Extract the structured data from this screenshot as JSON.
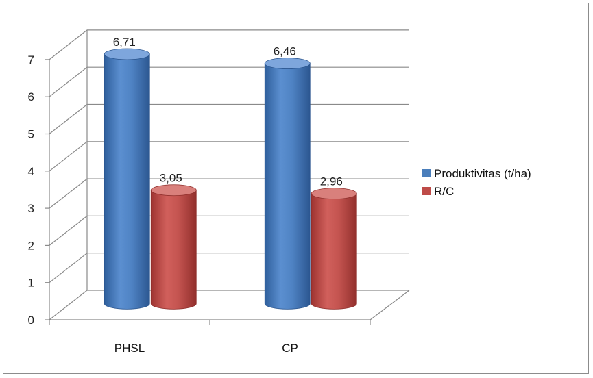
{
  "chart_data": {
    "type": "bar",
    "style": "3d-cylinder",
    "categories": [
      "PHSL",
      "CP"
    ],
    "series": [
      {
        "name": "Produktivitas (t/ha)",
        "values": [
          6.71,
          6.46
        ],
        "labels": [
          "6,71",
          "6,46"
        ],
        "color": "#4a7ebb"
      },
      {
        "name": "R/C",
        "values": [
          3.05,
          2.96
        ],
        "labels": [
          "3,05",
          "2,96"
        ],
        "color": "#be4b48"
      }
    ],
    "yticks": [
      "0",
      "1",
      "2",
      "3",
      "4",
      "5",
      "6",
      "7"
    ],
    "ylim": [
      0,
      7
    ],
    "grid": true,
    "legend_position": "right"
  }
}
